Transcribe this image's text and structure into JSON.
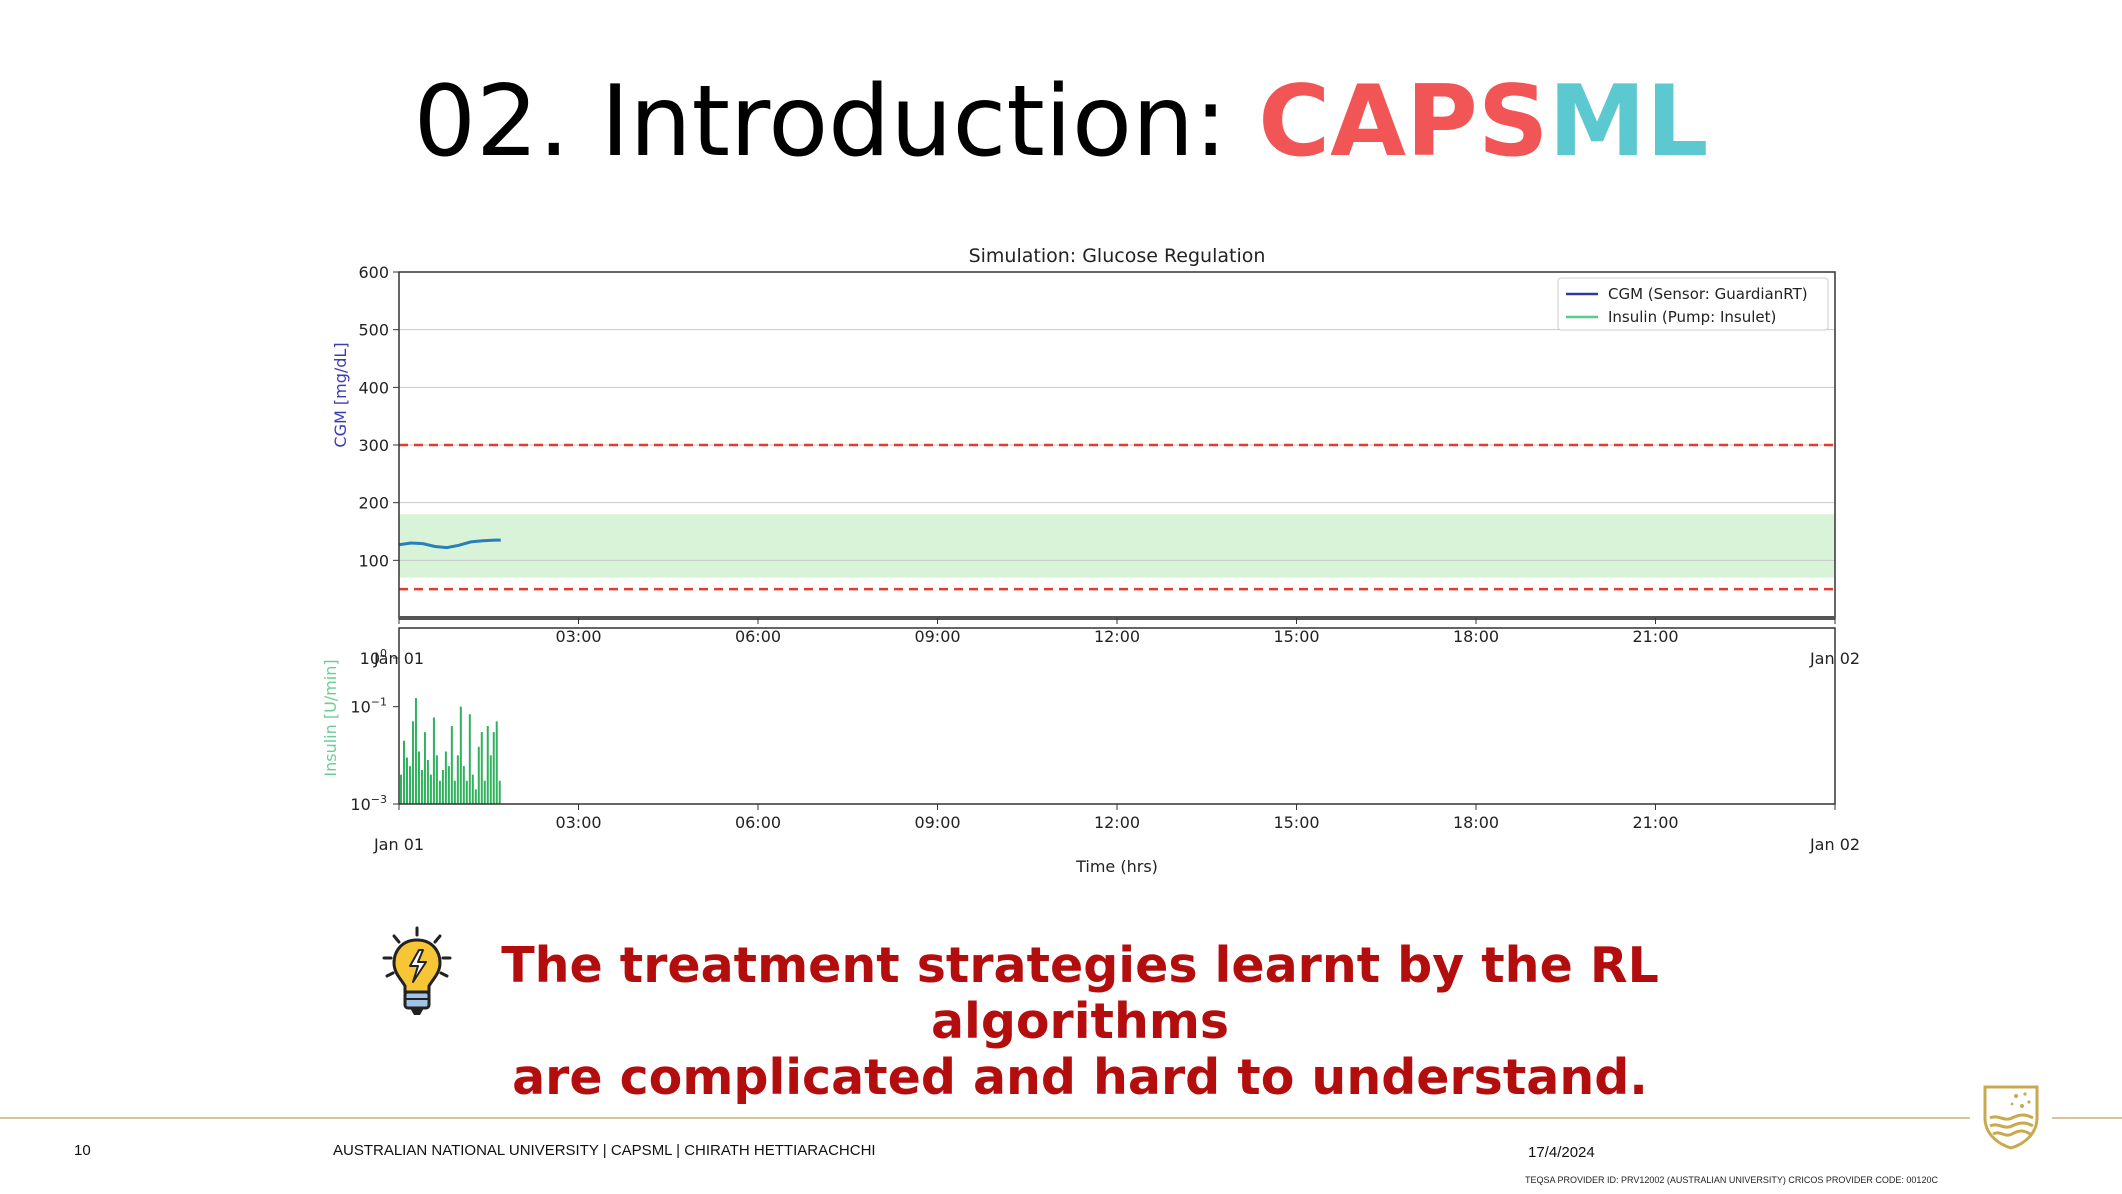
{
  "slide": {
    "title_prefix": "02. Introduction: ",
    "title_caps": "CAPS",
    "title_ml": "ML",
    "callout_line1": "The treatment strategies learnt by the RL algorithms",
    "callout_line2": "are complicated and hard to understand."
  },
  "footer": {
    "page_number": "10",
    "org_text": "AUSTRALIAN NATIONAL UNIVERSITY |   CAPSML  |  CHIRATH HETTIARACHCHI",
    "date": "17/4/2024",
    "provider": "TEQSA PROVIDER ID: PRV12002 (AUSTRALIAN UNIVERSITY) CRICOS PROVIDER CODE: 00120C"
  },
  "icons": {
    "bulb": "lightbulb-icon",
    "crest": "university-crest-icon"
  },
  "colors": {
    "caps": "#f25555",
    "ml": "#5cc8cf",
    "callout": "#b40d0d",
    "cgm_line": "#2a7fb8",
    "insulin_bar": "#2fb15d",
    "target_band": "#d8f3d8",
    "threshold": "#e8392f",
    "footer_rule": "#d6c596"
  },
  "chart_data": [
    {
      "type": "line",
      "title": "Simulation: Glucose Regulation",
      "ylabel": "CGM [mg/dL]",
      "xlabel": "",
      "ylim": [
        0,
        600
      ],
      "yticks": [
        100,
        200,
        300,
        400,
        500,
        600
      ],
      "xlim": [
        0,
        24
      ],
      "xticks": [
        {
          "h": 0,
          "label": ""
        },
        {
          "h": 3,
          "label": "03:00"
        },
        {
          "h": 6,
          "label": "06:00"
        },
        {
          "h": 9,
          "label": "09:00"
        },
        {
          "h": 12,
          "label": "12:00"
        },
        {
          "h": 15,
          "label": "15:00"
        },
        {
          "h": 18,
          "label": "18:00"
        },
        {
          "h": 21,
          "label": "21:00"
        },
        {
          "h": 24,
          "label": ""
        }
      ],
      "date_labels": [
        {
          "h": 0,
          "label": "Jan 01"
        },
        {
          "h": 24,
          "label": "Jan 02"
        }
      ],
      "target_range": [
        70,
        180
      ],
      "thresholds": [
        50,
        300
      ],
      "grid": true,
      "legend_position": "top-right",
      "legend": [
        "CGM (Sensor: GuardianRT)",
        "Insulin (Pump: Insulet)"
      ],
      "series": [
        {
          "name": "CGM (Sensor: GuardianRT)",
          "x": [
            0,
            0.2,
            0.4,
            0.6,
            0.8,
            1.0,
            1.2,
            1.4,
            1.6,
            1.7
          ],
          "y": [
            127,
            130,
            129,
            124,
            122,
            126,
            132,
            134,
            135,
            135
          ]
        }
      ]
    },
    {
      "type": "bar",
      "ylabel": "Insulin [U/min]",
      "xlabel": "Time (hrs)",
      "yscale": "log",
      "ylim": [
        0.001,
        1
      ],
      "yticks": [
        {
          "v": 0.001,
          "base": "10",
          "exp": "−3"
        },
        {
          "v": 0.1,
          "base": "10",
          "exp": "−1"
        },
        {
          "v": 1,
          "base": "10",
          "exp": "0"
        }
      ],
      "xlim": [
        0,
        24
      ],
      "xticks": [
        {
          "h": 0,
          "label": ""
        },
        {
          "h": 3,
          "label": "03:00"
        },
        {
          "h": 6,
          "label": "06:00"
        },
        {
          "h": 9,
          "label": "09:00"
        },
        {
          "h": 12,
          "label": "12:00"
        },
        {
          "h": 15,
          "label": "15:00"
        },
        {
          "h": 18,
          "label": "18:00"
        },
        {
          "h": 21,
          "label": "21:00"
        },
        {
          "h": 24,
          "label": ""
        }
      ],
      "date_labels": [
        {
          "h": 0,
          "label": "Jan 01"
        },
        {
          "h": 24,
          "label": "Jan 02"
        }
      ],
      "series": [
        {
          "name": "Insulin (Pump: Insulet)",
          "x": [
            0.05,
            0.1,
            0.15,
            0.2,
            0.25,
            0.3,
            0.35,
            0.4,
            0.45,
            0.5,
            0.55,
            0.6,
            0.65,
            0.7,
            0.75,
            0.8,
            0.85,
            0.9,
            0.95,
            1.0,
            1.05,
            1.1,
            1.15,
            1.2,
            1.25,
            1.3,
            1.35,
            1.4,
            1.45,
            1.5,
            1.55,
            1.6,
            1.65,
            1.7
          ],
          "values": [
            0.004,
            0.02,
            0.009,
            0.006,
            0.05,
            0.15,
            0.012,
            0.005,
            0.03,
            0.008,
            0.004,
            0.06,
            0.01,
            0.003,
            0.005,
            0.012,
            0.006,
            0.04,
            0.003,
            0.01,
            0.1,
            0.006,
            0.003,
            0.07,
            0.004,
            0.002,
            0.015,
            0.03,
            0.003,
            0.04,
            0.01,
            0.03,
            0.05,
            0.003
          ]
        }
      ]
    }
  ]
}
